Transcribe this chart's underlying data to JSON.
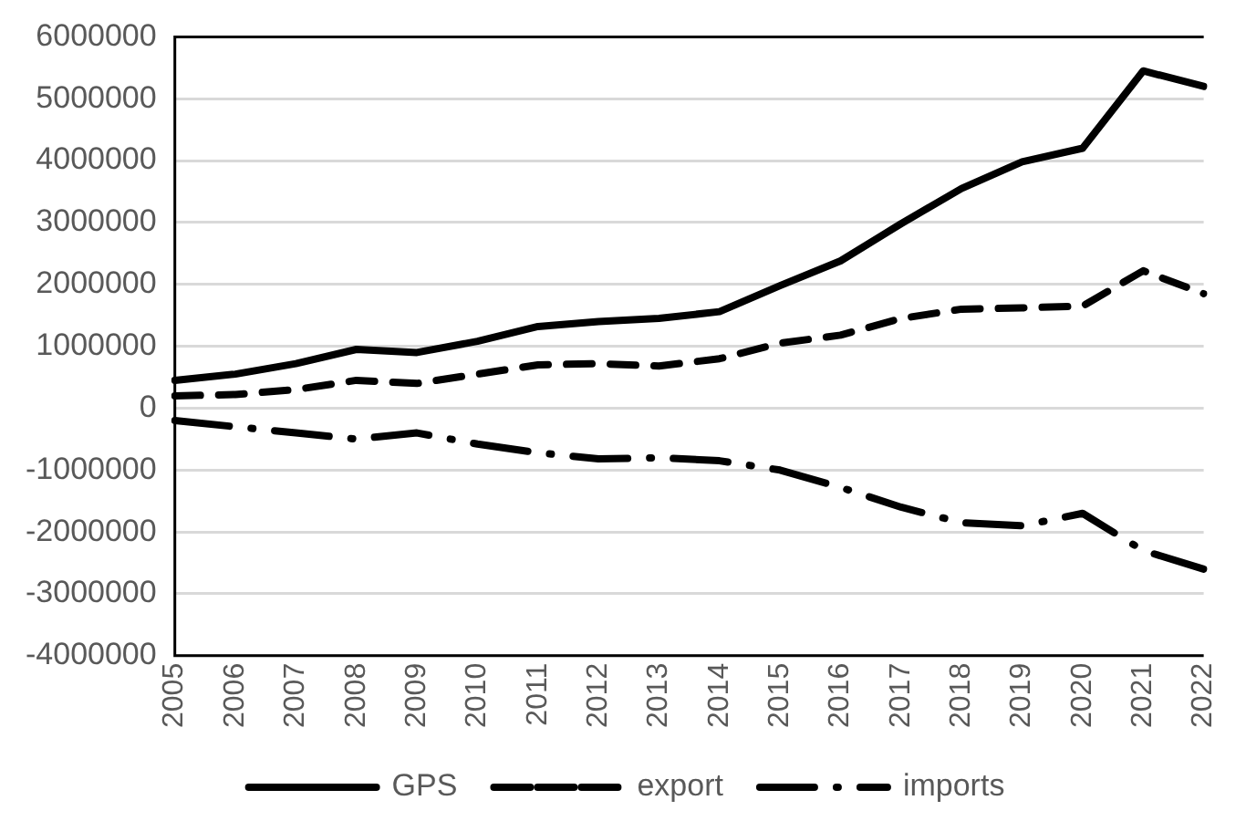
{
  "chart_data": {
    "type": "line",
    "categories": [
      "2005",
      "2006",
      "2007",
      "2008",
      "2009",
      "2010",
      "2011",
      "2012",
      "2013",
      "2014",
      "2015",
      "2016",
      "2017",
      "2018",
      "2019",
      "2020",
      "2021",
      "2022"
    ],
    "series": [
      {
        "name": "GPS",
        "color": "#000000",
        "line_style": "solid",
        "values": [
          450000,
          550000,
          720000,
          950000,
          900000,
          1080000,
          1320000,
          1400000,
          1450000,
          1560000,
          1980000,
          2380000,
          2980000,
          3550000,
          3980000,
          4200000,
          5450000,
          5200000
        ]
      },
      {
        "name": "export",
        "color": "#000000",
        "line_style": "dashed",
        "values": [
          200000,
          220000,
          300000,
          450000,
          400000,
          550000,
          700000,
          720000,
          680000,
          800000,
          1050000,
          1180000,
          1450000,
          1600000,
          1620000,
          1650000,
          2220000,
          1850000
        ]
      },
      {
        "name": "imports",
        "color": "#000000",
        "line_style": "dotted",
        "values": [
          -200000,
          -300000,
          -400000,
          -500000,
          -400000,
          -580000,
          -720000,
          -820000,
          -800000,
          -850000,
          -1000000,
          -1280000,
          -1600000,
          -1850000,
          -1900000,
          -1700000,
          -2300000,
          -2600000
        ]
      }
    ],
    "ylim": [
      -4000000,
      6000000
    ],
    "yticks": [
      -4000000,
      -3000000,
      -2000000,
      -1000000,
      0,
      1000000,
      2000000,
      3000000,
      4000000,
      5000000,
      6000000
    ],
    "grid": "y",
    "legend": "bottom",
    "marker": "none"
  }
}
